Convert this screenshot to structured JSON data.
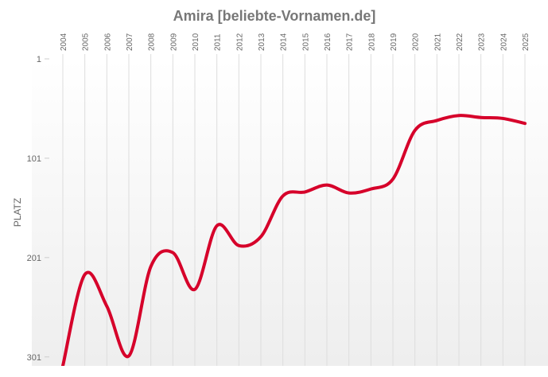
{
  "chart_data": {
    "type": "line",
    "title": "Amira [beliebte-Vornamen.de]",
    "y_label": "PLATZ",
    "categories": [
      "2004",
      "2005",
      "2006",
      "2007",
      "2008",
      "2009",
      "2010",
      "2011",
      "2012",
      "2013",
      "2014",
      "2015",
      "2016",
      "2017",
      "2018",
      "2019",
      "2020",
      "2021",
      "2022",
      "2023",
      "2024",
      "2025"
    ],
    "series": [
      {
        "name": "Amira",
        "color": "#d6002a",
        "values": [
          310,
          218,
          250,
          300,
          210,
          196,
          233,
          169,
          189,
          180,
          139,
          135,
          128,
          136,
          132,
          122,
          73,
          63,
          58,
          60,
          61,
          66
        ]
      }
    ],
    "ylim": [
      1,
      310
    ],
    "yticks": [
      1,
      101,
      201,
      301
    ],
    "y_inverted": true,
    "grid": true
  }
}
